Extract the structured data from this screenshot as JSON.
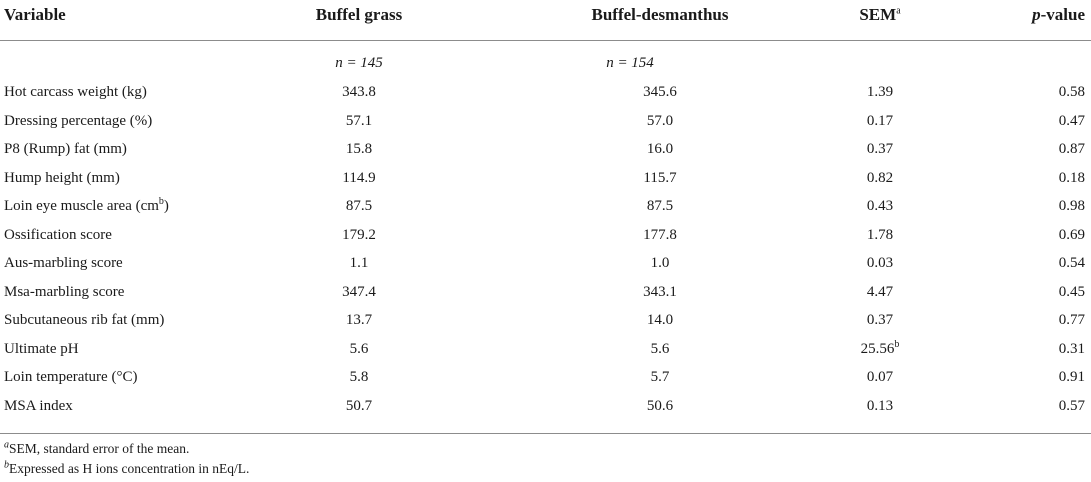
{
  "table": {
    "headers": {
      "variable": "Variable",
      "buffel_grass": "Buffel grass",
      "buffel_desmanthus": "Buffel-desmanthus",
      "sem": "SEM",
      "sem_sup": "a",
      "p_italic": "p",
      "p_rest": "-value"
    },
    "n_row": {
      "buffel_grass": "n = 145",
      "buffel_desmanthus": "n = 154"
    },
    "rows": [
      {
        "label": "Hot carcass weight (kg)",
        "label_sup": "",
        "bg": "343.8",
        "bd": "345.6",
        "sem": "1.39",
        "sem_sup": "",
        "p": "0.58"
      },
      {
        "label": "Dressing percentage (%)",
        "label_sup": "",
        "bg": "57.1",
        "bd": "57.0",
        "sem": "0.17",
        "sem_sup": "",
        "p": "0.47"
      },
      {
        "label": "P8 (Rump) fat (mm)",
        "label_sup": "",
        "bg": "15.8",
        "bd": "16.0",
        "sem": "0.37",
        "sem_sup": "",
        "p": "0.87"
      },
      {
        "label": "Hump height (mm)",
        "label_sup": "",
        "bg": "114.9",
        "bd": "115.7",
        "sem": "0.82",
        "sem_sup": "",
        "p": "0.18"
      },
      {
        "label": "Loin eye muscle area (cm",
        "label_sup": "b",
        "label_after": ")",
        "bg": "87.5",
        "bd": "87.5",
        "sem": "0.43",
        "sem_sup": "",
        "p": "0.98"
      },
      {
        "label": "Ossification score",
        "label_sup": "",
        "bg": "179.2",
        "bd": "177.8",
        "sem": "1.78",
        "sem_sup": "",
        "p": "0.69"
      },
      {
        "label": "Aus-marbling score",
        "label_sup": "",
        "bg": "1.1",
        "bd": "1.0",
        "sem": "0.03",
        "sem_sup": "",
        "p": "0.54"
      },
      {
        "label": "Msa-marbling score",
        "label_sup": "",
        "bg": "347.4",
        "bd": "343.1",
        "sem": "4.47",
        "sem_sup": "",
        "p": "0.45"
      },
      {
        "label": "Subcutaneous rib fat (mm)",
        "label_sup": "",
        "bg": "13.7",
        "bd": "14.0",
        "sem": "0.37",
        "sem_sup": "",
        "p": "0.77"
      },
      {
        "label": "Ultimate pH",
        "label_sup": "",
        "bg": "5.6",
        "bd": "5.6",
        "sem": "25.56",
        "sem_sup": "b",
        "p": "0.31"
      },
      {
        "label": "Loin temperature (°C)",
        "label_sup": "",
        "bg": "5.8",
        "bd": "5.7",
        "sem": "0.07",
        "sem_sup": "",
        "p": "0.91"
      },
      {
        "label": "MSA index",
        "label_sup": "",
        "bg": "50.7",
        "bd": "50.6",
        "sem": "0.13",
        "sem_sup": "",
        "p": "0.57"
      }
    ]
  },
  "footnotes": [
    {
      "mark": "a",
      "text": "SEM, standard error of the mean."
    },
    {
      "mark": "b",
      "text": "Expressed as H ions concentration in nEq/L."
    }
  ]
}
